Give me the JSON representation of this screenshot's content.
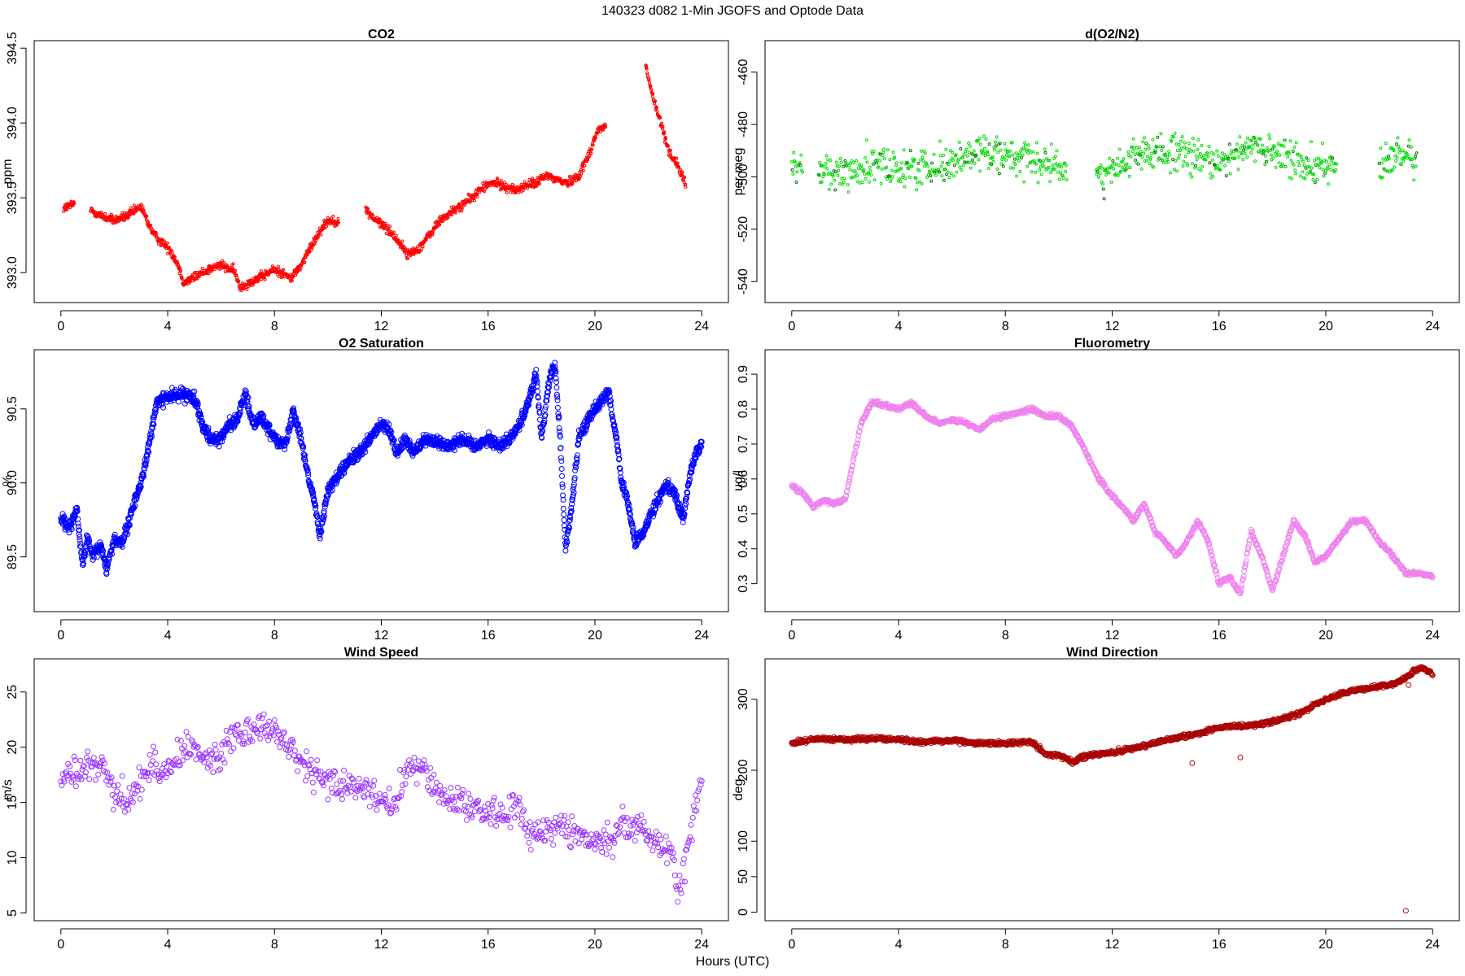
{
  "figure": {
    "title": "140323   d082   1-Min  JGOFS and Optode Data",
    "xlabel": "Hours (UTC)"
  },
  "chart_data": [
    {
      "type": "scatter",
      "title": "CO2",
      "ylabel": "ppm",
      "color": "#ff0000",
      "xlim": [
        -1,
        25
      ],
      "ylim": [
        392.8,
        394.55
      ],
      "xticks": [
        0,
        4,
        8,
        12,
        16,
        20,
        24
      ],
      "yticks": [
        393.0,
        393.5,
        394.0,
        394.5
      ],
      "ytick_labels": [
        "393.0",
        "393.5",
        "394.0",
        "394.5"
      ],
      "marker_radius": 1.5,
      "noise": 0.03,
      "density": 70,
      "gaps": [
        [
          0.5,
          1.1
        ],
        [
          10.4,
          11.4
        ],
        [
          20.4,
          21.9
        ]
      ],
      "series": [
        {
          "name": "CO2",
          "x": [
            0.1,
            0.5,
            1.1,
            1.5,
            2.0,
            2.5,
            3.0,
            3.3,
            3.5,
            3.8,
            4.1,
            4.4,
            4.6,
            5.0,
            5.5,
            6.0,
            6.5,
            6.7,
            7.0,
            7.5,
            8.0,
            8.3,
            8.6,
            9.0,
            9.3,
            9.7,
            10.0,
            10.4,
            11.4,
            11.8,
            12.2,
            12.6,
            13.0,
            13.4,
            13.8,
            14.2,
            14.6,
            15.0,
            15.4,
            15.8,
            16.2,
            16.6,
            17.0,
            17.4,
            17.8,
            18.2,
            18.6,
            19.0,
            19.4,
            19.8,
            20.1,
            20.4,
            21.9,
            22.2,
            22.5,
            22.8,
            23.1,
            23.4
          ],
          "y": [
            393.43,
            393.46,
            393.42,
            393.38,
            393.35,
            393.38,
            393.44,
            393.32,
            393.25,
            393.2,
            393.15,
            393.05,
            392.93,
            392.97,
            393.02,
            393.05,
            393.01,
            392.9,
            392.93,
            392.97,
            393.02,
            393.0,
            392.96,
            393.05,
            393.15,
            393.28,
            393.35,
            393.34,
            393.42,
            393.35,
            393.3,
            393.22,
            393.12,
            393.16,
            393.25,
            393.35,
            393.4,
            393.45,
            393.5,
            393.57,
            393.6,
            393.58,
            393.55,
            393.58,
            393.6,
            393.65,
            393.62,
            393.6,
            393.65,
            393.8,
            393.95,
            393.98,
            394.38,
            394.15,
            393.98,
            393.8,
            393.72,
            393.58
          ]
        }
      ]
    },
    {
      "type": "scatter",
      "title": "d(O2/N2)",
      "ylabel": "per meg",
      "color": "#00dd00",
      "color2": "#007700",
      "xlim": [
        -1,
        25
      ],
      "ylim": [
        -548,
        -448
      ],
      "xticks": [
        0,
        4,
        8,
        12,
        16,
        20,
        24
      ],
      "yticks": [
        -540,
        -520,
        -500,
        -480,
        -460
      ],
      "ytick_labels": [
        "-540",
        "-520",
        "-500",
        "-480",
        "-460"
      ],
      "marker_radius": 1.5,
      "noise": 7,
      "density": 40,
      "gaps": [
        [
          0.4,
          1.0
        ],
        [
          10.3,
          11.4
        ],
        [
          20.4,
          22.0
        ],
        [
          23.4,
          25
        ]
      ],
      "series": [
        {
          "name": "d(O2/N2)",
          "x": [
            0.0,
            0.4,
            1.0,
            2.0,
            3.0,
            4.0,
            5.0,
            6.0,
            7.0,
            8.0,
            9.0,
            10.0,
            10.3,
            11.4,
            12.0,
            13.0,
            14.0,
            15.0,
            16.0,
            17.0,
            18.0,
            19.0,
            20.0,
            20.4,
            22.0,
            22.5,
            23.0,
            23.4
          ],
          "y": [
            -496,
            -496,
            -498,
            -498,
            -496,
            -497,
            -496,
            -495,
            -490,
            -491,
            -495,
            -496,
            -497,
            -499,
            -498,
            -492,
            -490,
            -493,
            -494,
            -489,
            -491,
            -494,
            -496,
            -496,
            -495,
            -494,
            -491,
            -492
          ]
        }
      ]
    },
    {
      "type": "scatter",
      "title": "O2 Saturation",
      "ylabel": "%",
      "color": "#0000ff",
      "xlim": [
        -1,
        25
      ],
      "ylim": [
        89.13,
        90.9
      ],
      "xticks": [
        0,
        4,
        8,
        12,
        16,
        20,
        24
      ],
      "yticks": [
        89.5,
        90.0,
        90.5
      ],
      "ytick_labels": [
        "89.5",
        "90.0",
        "90.5"
      ],
      "marker_radius": 3,
      "noise": 0.04,
      "density": 90,
      "gaps": [],
      "series": [
        {
          "name": "O2 Saturation",
          "x": [
            0.0,
            0.3,
            0.6,
            0.8,
            1.0,
            1.2,
            1.5,
            1.7,
            2.0,
            2.3,
            2.5,
            2.8,
            3.0,
            3.3,
            3.6,
            4.0,
            4.5,
            5.0,
            5.3,
            5.6,
            6.0,
            6.3,
            6.6,
            6.9,
            7.2,
            7.5,
            7.8,
            8.1,
            8.4,
            8.7,
            9.0,
            9.3,
            9.5,
            9.7,
            10.0,
            10.4,
            10.8,
            11.2,
            11.6,
            12.0,
            12.3,
            12.6,
            12.9,
            13.2,
            13.6,
            14.0,
            14.5,
            15.0,
            15.5,
            16.0,
            16.4,
            16.8,
            17.2,
            17.6,
            17.8,
            18.0,
            18.3,
            18.5,
            18.7,
            18.9,
            19.1,
            19.4,
            19.8,
            20.2,
            20.5,
            20.8,
            21.0,
            21.2,
            21.5,
            21.8,
            22.1,
            22.4,
            22.7,
            23.0,
            23.3,
            23.6,
            24.0
          ],
          "y": [
            89.76,
            89.7,
            89.82,
            89.45,
            89.62,
            89.5,
            89.58,
            89.42,
            89.62,
            89.6,
            89.7,
            89.9,
            90.0,
            90.25,
            90.55,
            90.58,
            90.6,
            90.58,
            90.4,
            90.3,
            90.3,
            90.4,
            90.42,
            90.6,
            90.4,
            90.45,
            90.35,
            90.3,
            90.25,
            90.5,
            90.3,
            90.0,
            89.88,
            89.65,
            89.95,
            90.05,
            90.15,
            90.2,
            90.3,
            90.4,
            90.35,
            90.2,
            90.3,
            90.2,
            90.3,
            90.28,
            90.25,
            90.3,
            90.25,
            90.3,
            90.25,
            90.3,
            90.4,
            90.6,
            90.75,
            90.3,
            90.7,
            90.8,
            90.3,
            89.55,
            89.8,
            90.3,
            90.45,
            90.55,
            90.62,
            90.3,
            90.0,
            89.9,
            89.6,
            89.65,
            89.8,
            89.9,
            90.0,
            89.92,
            89.75,
            90.1,
            90.28
          ]
        }
      ]
    },
    {
      "type": "scatter",
      "title": "Fluorometry",
      "ylabel": "ug/l",
      "color": "#ee82ee",
      "xlim": [
        -1,
        25
      ],
      "ylim": [
        0.22,
        0.97
      ],
      "xticks": [
        0,
        4,
        8,
        12,
        16,
        20,
        24
      ],
      "yticks": [
        0.3,
        0.4,
        0.5,
        0.6,
        0.7,
        0.8,
        0.9
      ],
      "ytick_labels": [
        "0.3",
        "0.4",
        "0.5",
        "0.6",
        "0.7",
        "0.8",
        "0.9"
      ],
      "marker_radius": 3,
      "noise": 0.006,
      "density": 50,
      "gaps": [],
      "series": [
        {
          "name": "Fluorometry",
          "x": [
            0.0,
            0.4,
            0.8,
            1.2,
            1.6,
            2.0,
            2.3,
            2.6,
            3.0,
            3.5,
            4.0,
            4.5,
            5.0,
            5.5,
            6.0,
            6.5,
            7.0,
            7.5,
            8.0,
            8.5,
            9.0,
            9.5,
            10.0,
            10.5,
            11.0,
            11.5,
            12.0,
            12.4,
            12.8,
            13.2,
            13.6,
            14.0,
            14.4,
            14.8,
            15.2,
            15.6,
            16.0,
            16.4,
            16.8,
            17.2,
            17.6,
            18.0,
            18.4,
            18.8,
            19.2,
            19.6,
            20.0,
            20.5,
            21.0,
            21.5,
            22.0,
            22.5,
            23.0,
            23.5,
            24.0
          ],
          "y": [
            0.58,
            0.56,
            0.52,
            0.54,
            0.53,
            0.54,
            0.65,
            0.76,
            0.82,
            0.81,
            0.8,
            0.82,
            0.78,
            0.76,
            0.77,
            0.76,
            0.74,
            0.77,
            0.78,
            0.79,
            0.8,
            0.78,
            0.78,
            0.75,
            0.68,
            0.6,
            0.55,
            0.52,
            0.48,
            0.53,
            0.45,
            0.42,
            0.38,
            0.42,
            0.48,
            0.42,
            0.3,
            0.32,
            0.27,
            0.45,
            0.38,
            0.28,
            0.38,
            0.48,
            0.44,
            0.36,
            0.38,
            0.43,
            0.48,
            0.48,
            0.42,
            0.38,
            0.33,
            0.33,
            0.32
          ]
        }
      ]
    },
    {
      "type": "scatter",
      "title": "Wind Speed",
      "ylabel": "m/s",
      "color": "#9933ff",
      "xlim": [
        -1,
        25
      ],
      "ylim": [
        4.3,
        28
      ],
      "xticks": [
        0,
        4,
        8,
        12,
        16,
        20,
        24
      ],
      "yticks": [
        5,
        10,
        15,
        20,
        25
      ],
      "ytick_labels": [
        "5",
        "10",
        "15",
        "20",
        "25"
      ],
      "marker_radius": 3,
      "noise": 1.4,
      "density": 30,
      "gaps": [],
      "series": [
        {
          "name": "Wind Speed",
          "x": [
            0.0,
            0.5,
            1.0,
            1.5,
            2.0,
            2.5,
            3.0,
            3.5,
            4.0,
            4.5,
            5.0,
            5.5,
            6.0,
            6.5,
            7.0,
            7.5,
            8.0,
            8.5,
            9.0,
            9.5,
            10.0,
            10.5,
            11.0,
            11.5,
            12.0,
            12.5,
            13.0,
            13.5,
            14.0,
            14.5,
            15.0,
            15.5,
            16.0,
            16.5,
            17.0,
            17.5,
            18.0,
            18.5,
            19.0,
            19.5,
            20.0,
            20.5,
            21.0,
            21.5,
            22.0,
            22.5,
            22.9,
            23.1,
            23.3,
            23.6,
            24.0
          ],
          "y": [
            17.0,
            17.5,
            18.0,
            18.5,
            16.0,
            15.0,
            17.0,
            18.5,
            18.0,
            19.5,
            20.0,
            19.0,
            19.0,
            21.5,
            21.5,
            22.0,
            21.5,
            20.0,
            18.5,
            17.5,
            17.0,
            16.5,
            16.5,
            16.0,
            15.5,
            14.5,
            18.0,
            18.0,
            16.5,
            15.5,
            15.0,
            14.5,
            14.0,
            14.0,
            14.5,
            12.5,
            12.5,
            13.0,
            12.5,
            12.0,
            11.5,
            11.5,
            13.0,
            13.0,
            12.0,
            11.0,
            11.0,
            6.5,
            8.5,
            13.0,
            17.0
          ]
        }
      ]
    },
    {
      "type": "scatter",
      "title": "Wind Direction",
      "ylabel": "deg",
      "color": "#aa0000",
      "xlim": [
        -1,
        25
      ],
      "ylim": [
        -12,
        357
      ],
      "xticks": [
        0,
        4,
        8,
        12,
        16,
        20,
        24
      ],
      "yticks": [
        0,
        50,
        100,
        200,
        300
      ],
      "ytick_labels": [
        "0",
        "50",
        "100",
        "200",
        "300"
      ],
      "marker_radius": 3,
      "noise": 3,
      "density": 50,
      "gaps": [],
      "outliers": [
        [
          23.0,
          2
        ],
        [
          15.0,
          210
        ],
        [
          16.8,
          218
        ],
        [
          23.1,
          320
        ]
      ],
      "series": [
        {
          "name": "Wind Direction",
          "x": [
            0.0,
            1.0,
            2.0,
            3.0,
            4.0,
            5.0,
            6.0,
            7.0,
            8.0,
            9.0,
            9.5,
            10.0,
            10.5,
            11.0,
            12.0,
            13.0,
            14.0,
            15.0,
            16.0,
            17.0,
            18.0,
            19.0,
            20.0,
            21.0,
            22.0,
            22.6,
            23.0,
            23.3,
            23.6,
            24.0
          ],
          "y": [
            238,
            245,
            243,
            245,
            243,
            240,
            242,
            238,
            238,
            240,
            222,
            222,
            212,
            220,
            225,
            232,
            243,
            250,
            260,
            262,
            268,
            280,
            300,
            312,
            318,
            322,
            330,
            340,
            345,
            335
          ]
        }
      ]
    }
  ]
}
